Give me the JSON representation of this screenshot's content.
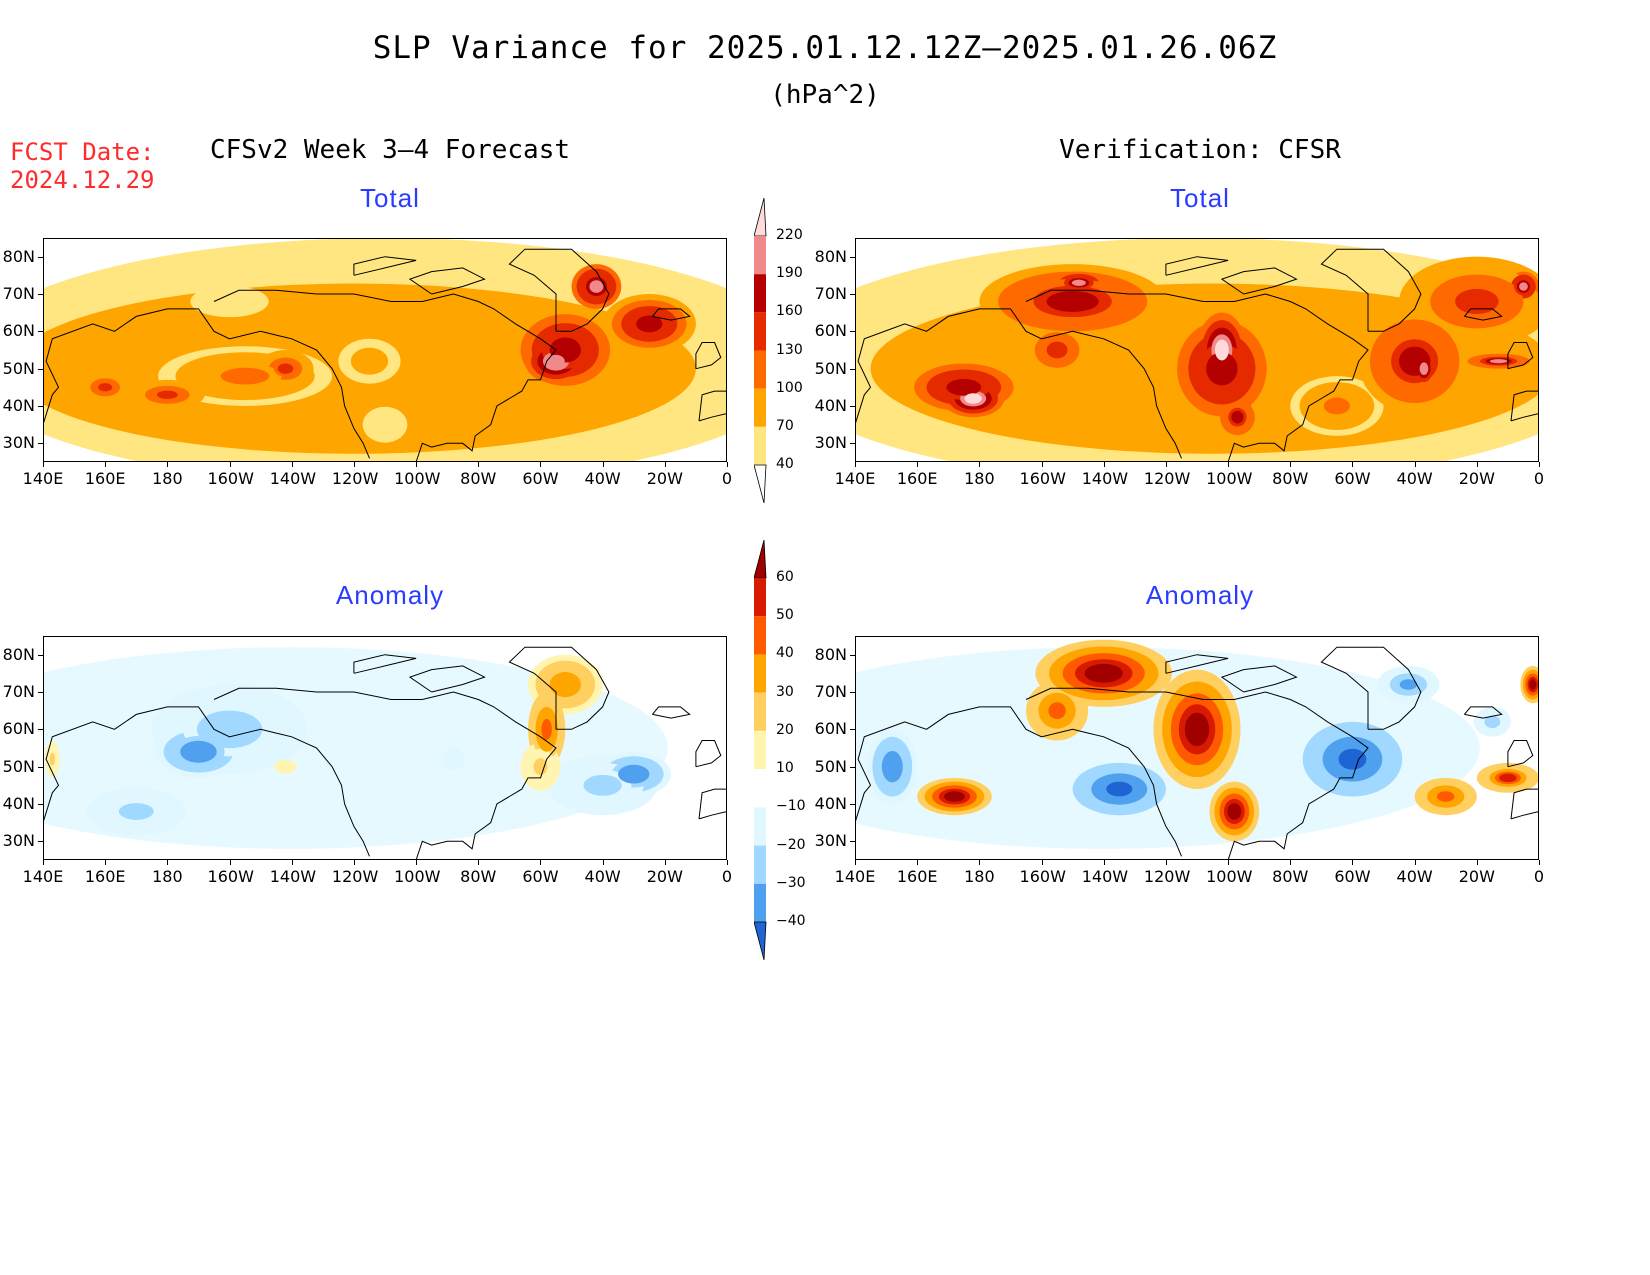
{
  "header": {
    "title": "SLP Variance for 2025.01.12.12Z–2025.01.26.06Z",
    "units": "(hPa^2)",
    "fcst_label": "FCST Date:",
    "fcst_date": "2024.12.29",
    "left_column_title": "CFSv2 Week 3–4 Forecast",
    "right_column_title": "Verification: CFSR"
  },
  "axes": {
    "lon_ticks": [
      "140E",
      "160E",
      "180",
      "160W",
      "140W",
      "120W",
      "100W",
      "80W",
      "60W",
      "40W",
      "20W",
      "0"
    ],
    "lat_ticks": [
      "80N",
      "70N",
      "60N",
      "50N",
      "40N",
      "30N"
    ],
    "lon_range": [
      140,
      360
    ],
    "lat_range": [
      25,
      85
    ]
  },
  "colorbars": {
    "total": {
      "levels": [
        "40",
        "70",
        "100",
        "130",
        "160",
        "190",
        "220"
      ],
      "colors": [
        "#ffe680",
        "#ffa500",
        "#ff6a00",
        "#e52a00",
        "#b40000",
        "#f08a8a",
        "#ffdada"
      ]
    },
    "anomaly": {
      "levels": [
        "60",
        "50",
        "40",
        "30",
        "20",
        "10",
        "−10",
        "−20",
        "−30",
        "−40"
      ],
      "colors": [
        "#a00000",
        "#d81a00",
        "#ff5a00",
        "#ffa500",
        "#ffd060",
        "#fff5b0",
        "#ffffff",
        "#e0f7ff",
        "#a0d8ff",
        "#50a0f0",
        "#1e64d2"
      ]
    }
  },
  "chart_data": [
    {
      "type": "heatmap",
      "title": "Total",
      "column": "CFSv2 Week 3–4 Forecast",
      "blobs": [
        {
          "lon": 205,
          "lat": 48,
          "value": 110,
          "rlon": 28,
          "rlat": 8
        },
        {
          "lon": 180,
          "lat": 43,
          "value": 140,
          "rlon": 12,
          "rlat": 4
        },
        {
          "lon": 160,
          "lat": 45,
          "value": 130,
          "rlon": 8,
          "rlat": 4
        },
        {
          "lon": 218,
          "lat": 50,
          "value": 140,
          "rlon": 9,
          "rlat": 5
        },
        {
          "lon": 245,
          "lat": 52,
          "value": 95,
          "rlon": 10,
          "rlat": 6
        },
        {
          "lon": 305,
          "lat": 52,
          "value": 215,
          "rlon": 10,
          "rlat": 6
        },
        {
          "lon": 308,
          "lat": 55,
          "value": 180,
          "rlon": 18,
          "rlat": 12
        },
        {
          "lon": 318,
          "lat": 72,
          "value": 200,
          "rlon": 8,
          "rlat": 6
        },
        {
          "lon": 335,
          "lat": 62,
          "value": 170,
          "rlon": 15,
          "rlat": 8
        },
        {
          "lon": 250,
          "lat": 35,
          "value": 55,
          "rlon": 12,
          "rlat": 8
        },
        {
          "lon": 200,
          "lat": 68,
          "value": 50,
          "rlon": 30,
          "rlat": 10
        }
      ]
    },
    {
      "type": "heatmap",
      "title": "Total",
      "column": "Verification: CFSR",
      "blobs": [
        {
          "lon": 178,
          "lat": 42,
          "value": 225,
          "rlon": 10,
          "rlat": 5
        },
        {
          "lon": 175,
          "lat": 45,
          "value": 170,
          "rlon": 20,
          "rlat": 8
        },
        {
          "lon": 210,
          "lat": 68,
          "value": 160,
          "rlon": 30,
          "rlat": 10
        },
        {
          "lon": 212,
          "lat": 73,
          "value": 205,
          "rlon": 8,
          "rlat": 3
        },
        {
          "lon": 258,
          "lat": 55,
          "value": 225,
          "rlon": 8,
          "rlat": 10
        },
        {
          "lon": 258,
          "lat": 50,
          "value": 170,
          "rlon": 18,
          "rlat": 16
        },
        {
          "lon": 263,
          "lat": 37,
          "value": 160,
          "rlon": 7,
          "rlat": 6
        },
        {
          "lon": 323,
          "lat": 50,
          "value": 205,
          "rlon": 5,
          "rlat": 6
        },
        {
          "lon": 320,
          "lat": 52,
          "value": 160,
          "rlon": 18,
          "rlat": 14
        },
        {
          "lon": 347,
          "lat": 52,
          "value": 195,
          "rlon": 10,
          "rlat": 2
        },
        {
          "lon": 355,
          "lat": 72,
          "value": 205,
          "rlon": 5,
          "rlat": 4
        },
        {
          "lon": 340,
          "lat": 68,
          "value": 140,
          "rlon": 25,
          "rlat": 12
        },
        {
          "lon": 205,
          "lat": 55,
          "value": 130,
          "rlon": 12,
          "rlat": 8
        },
        {
          "lon": 295,
          "lat": 40,
          "value": 110,
          "rlon": 15,
          "rlat": 8
        }
      ]
    },
    {
      "type": "heatmap",
      "title": "Anomaly",
      "column": "CFSv2 Week 3–4 Forecast",
      "blobs": [
        {
          "lon": 190,
          "lat": 54,
          "value": -38,
          "rlon": 14,
          "rlat": 7
        },
        {
          "lon": 200,
          "lat": 60,
          "value": -25,
          "rlon": 25,
          "rlat": 12
        },
        {
          "lon": 170,
          "lat": 38,
          "value": -20,
          "rlon": 20,
          "rlat": 8
        },
        {
          "lon": 330,
          "lat": 48,
          "value": -38,
          "rlon": 12,
          "rlat": 6
        },
        {
          "lon": 320,
          "lat": 45,
          "value": -20,
          "rlon": 22,
          "rlat": 10
        },
        {
          "lon": 302,
          "lat": 60,
          "value": 45,
          "rlon": 6,
          "rlat": 10
        },
        {
          "lon": 308,
          "lat": 72,
          "value": 35,
          "rlon": 12,
          "rlat": 8
        },
        {
          "lon": 300,
          "lat": 50,
          "value": 20,
          "rlon": 8,
          "rlat": 8
        },
        {
          "lon": 143,
          "lat": 52,
          "value": 22,
          "rlon": 3,
          "rlat": 6
        },
        {
          "lon": 218,
          "lat": 50,
          "value": 15,
          "rlon": 6,
          "rlat": 3
        },
        {
          "lon": 272,
          "lat": 52,
          "value": -15,
          "rlon": 6,
          "rlat": 5
        }
      ]
    },
    {
      "type": "heatmap",
      "title": "Anomaly",
      "column": "Verification: CFSR",
      "blobs": [
        {
          "lon": 220,
          "lat": 75,
          "value": 65,
          "rlon": 22,
          "rlat": 9
        },
        {
          "lon": 250,
          "lat": 60,
          "value": 65,
          "rlon": 14,
          "rlat": 16
        },
        {
          "lon": 262,
          "lat": 38,
          "value": 60,
          "rlon": 8,
          "rlat": 8
        },
        {
          "lon": 172,
          "lat": 42,
          "value": 60,
          "rlon": 12,
          "rlat": 5
        },
        {
          "lon": 205,
          "lat": 65,
          "value": 45,
          "rlon": 10,
          "rlat": 8
        },
        {
          "lon": 350,
          "lat": 47,
          "value": 50,
          "rlon": 10,
          "rlat": 4
        },
        {
          "lon": 330,
          "lat": 42,
          "value": 45,
          "rlon": 10,
          "rlat": 5
        },
        {
          "lon": 358,
          "lat": 72,
          "value": 60,
          "rlon": 4,
          "rlat": 5
        },
        {
          "lon": 225,
          "lat": 44,
          "value": -45,
          "rlon": 15,
          "rlat": 7
        },
        {
          "lon": 300,
          "lat": 52,
          "value": -45,
          "rlon": 16,
          "rlat": 10
        },
        {
          "lon": 318,
          "lat": 72,
          "value": -30,
          "rlon": 10,
          "rlat": 5
        },
        {
          "lon": 152,
          "lat": 50,
          "value": -35,
          "rlon": 8,
          "rlat": 10
        },
        {
          "lon": 345,
          "lat": 62,
          "value": -25,
          "rlon": 6,
          "rlat": 4
        }
      ]
    }
  ]
}
